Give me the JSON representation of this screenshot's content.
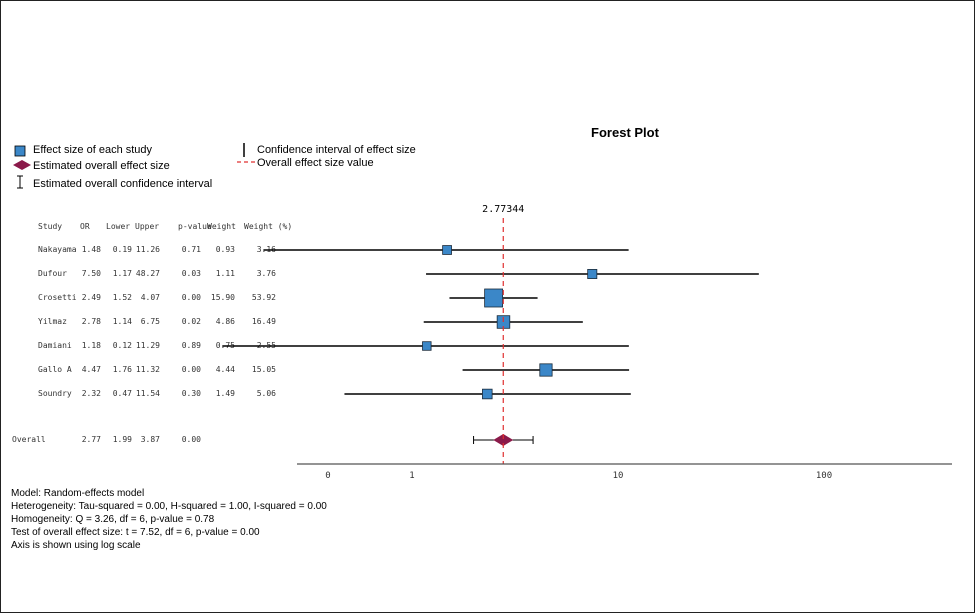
{
  "chart_data": {
    "type": "forest",
    "title": "Forest Plot",
    "legend": {
      "effect_size": "Effect size of each study",
      "overall_effect": "Estimated overall effect size",
      "overall_ci": "Estimated overall confidence interval",
      "ci": "Confidence interval of effect size",
      "overall_line": "Overall effect size value"
    },
    "overall_value_label": "2.77344",
    "overall_value": 2.77344,
    "columns": [
      "Study",
      "OR",
      "Lower",
      "Upper",
      "p-value",
      "Weight",
      "Weight (%)"
    ],
    "studies": [
      {
        "name": "Nakayama",
        "or": "1.48",
        "lower": "0.19",
        "upper": "11.26",
        "p": "0.71",
        "weight": "0.93",
        "weight_pct": "3.16"
      },
      {
        "name": "Dufour",
        "or": "7.50",
        "lower": "1.17",
        "upper": "48.27",
        "p": "0.03",
        "weight": "1.11",
        "weight_pct": "3.76"
      },
      {
        "name": "Crosetti",
        "or": "2.49",
        "lower": "1.52",
        "upper": "4.07",
        "p": "0.00",
        "weight": "15.90",
        "weight_pct": "53.92"
      },
      {
        "name": "Yilmaz",
        "or": "2.78",
        "lower": "1.14",
        "upper": "6.75",
        "p": "0.02",
        "weight": "4.86",
        "weight_pct": "16.49"
      },
      {
        "name": "Damiani",
        "or": "1.18",
        "lower": "0.12",
        "upper": "11.29",
        "p": "0.89",
        "weight": "0.75",
        "weight_pct": "2.55"
      },
      {
        "name": "Gallo A",
        "or": "4.47",
        "lower": "1.76",
        "upper": "11.32",
        "p": "0.00",
        "weight": "4.44",
        "weight_pct": "15.05"
      },
      {
        "name": "Soundry",
        "or": "2.32",
        "lower": "0.47",
        "upper": "11.54",
        "p": "0.30",
        "weight": "1.49",
        "weight_pct": "5.06"
      }
    ],
    "overall": {
      "name": "Overall",
      "or": "2.77",
      "lower": "1.99",
      "upper": "3.87",
      "p": "0.00"
    },
    "x_ticks": [
      {
        "label": "0",
        "value": 0.1
      },
      {
        "label": "1",
        "value": 1
      },
      {
        "label": "10",
        "value": 10
      },
      {
        "label": "100",
        "value": 100
      }
    ],
    "x_scale": "log",
    "colors": {
      "study": "#3b87c8",
      "overall": "#8b1a4a",
      "ref_line": "#e03030",
      "line": "#000000"
    }
  },
  "footer": {
    "model": "Model: Random-effects model",
    "heterogeneity": "Heterogeneity: Tau-squared = 0.00, H-squared = 1.00, I-squared = 0.00",
    "homogeneity": "Homogeneity: Q = 3.26, df = 6, p-value = 0.78",
    "test": "Test of overall effect size: t = 7.52, df = 6, p-value = 0.00",
    "axis_note": "Axis is shown using log scale"
  }
}
